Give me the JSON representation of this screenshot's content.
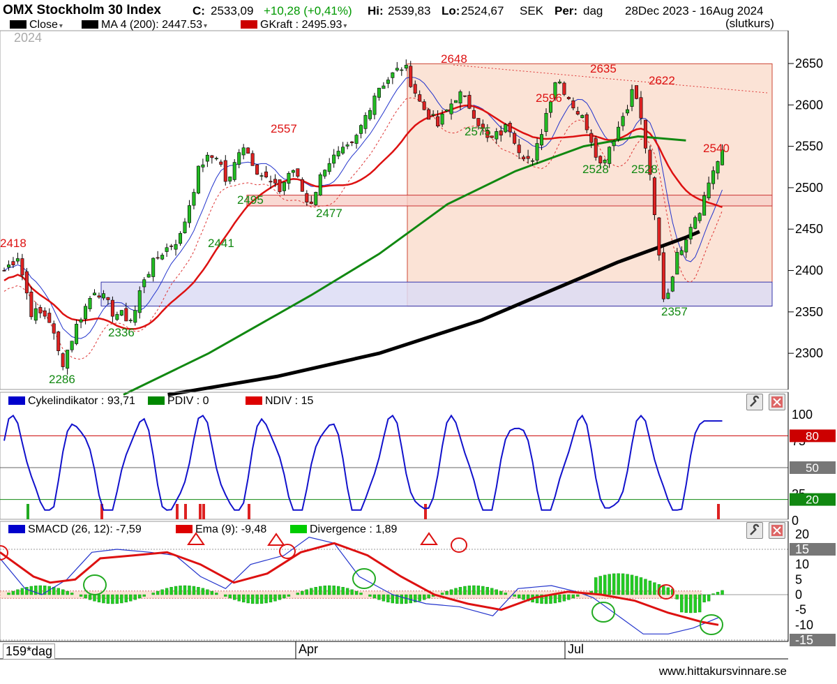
{
  "header": {
    "index_name": "OMX Stockholm 30 Index",
    "close_label": "C:",
    "close_value": "2533,09",
    "change": "+10,28 (+0,41%)",
    "hi_label": "Hi:",
    "hi_value": "2539,83",
    "lo_label": "Lo:",
    "lo_value": "2524,67",
    "currency": "SEK",
    "per_label": "Per:",
    "per_value": "dag",
    "date_range": "28Dec 2023 - 16Aug 2024",
    "price_type": "(slutkurs)",
    "year": "2024"
  },
  "legend_main": [
    {
      "label": "Close",
      "color": "#000000"
    },
    {
      "label": "MA 4 (200): 2447.53",
      "color": "#000000"
    },
    {
      "label": "GKraft : 2495.93",
      "color": "#cc0000"
    }
  ],
  "legend_cycle": [
    {
      "label": "Cykelindikator : 93,71",
      "color": "#0000cc"
    },
    {
      "label": "PDIV : 0",
      "color": "#008800"
    },
    {
      "label": "NDIV : 15",
      "color": "#dd0000"
    }
  ],
  "legend_macd": [
    {
      "label": "SMACD (26, 12): -7,59",
      "color": "#0000cc"
    },
    {
      "label": "Ema (9): -9,48",
      "color": "#dd0000"
    },
    {
      "label": "Divergence : 1,89",
      "color": "#00cc00"
    }
  ],
  "footer": {
    "bar_count": "159*dag",
    "site": "www.hittakursvinnare.se"
  },
  "chart_data": [
    {
      "type": "candlestick",
      "title": "OMX Stockholm 30 Index",
      "ylim": [
        2250,
        2670
      ],
      "yticks": [
        2300,
        2350,
        2400,
        2450,
        2500,
        2550,
        2600,
        2650
      ],
      "xticks": [
        "Apr",
        "Jul"
      ],
      "annotations": [
        {
          "text": "2418",
          "value": 2418,
          "color": "red"
        },
        {
          "text": "2286",
          "value": 2286,
          "color": "green"
        },
        {
          "text": "2336",
          "value": 2336,
          "color": "green"
        },
        {
          "text": "2441",
          "value": 2441,
          "color": "green"
        },
        {
          "text": "2557",
          "value": 2557,
          "color": "red"
        },
        {
          "text": "2495",
          "value": 2495,
          "color": "green"
        },
        {
          "text": "2477",
          "value": 2477,
          "color": "green"
        },
        {
          "text": "2648",
          "value": 2648,
          "color": "red"
        },
        {
          "text": "2575",
          "value": 2575,
          "color": "green"
        },
        {
          "text": "2596",
          "value": 2596,
          "color": "red"
        },
        {
          "text": "2528",
          "value": 2528,
          "color": "green"
        },
        {
          "text": "2635",
          "value": 2635,
          "color": "red"
        },
        {
          "text": "2528",
          "value": 2528,
          "color": "green"
        },
        {
          "text": "2622",
          "value": 2622,
          "color": "red"
        },
        {
          "text": "2540",
          "value": 2540,
          "color": "red"
        },
        {
          "text": "2357",
          "value": 2357,
          "color": "green"
        }
      ],
      "zones": [
        {
          "name": "range",
          "from": 2357,
          "to": 2648,
          "color": "#fbe3d6"
        },
        {
          "name": "support",
          "from": 2357,
          "to": 2386,
          "color": "#dcdcf5"
        },
        {
          "name": "resistance",
          "from": 2478,
          "to": 2491,
          "color": "#f7d0c8"
        }
      ]
    },
    {
      "type": "line",
      "title": "Cykelindikator",
      "ylim": [
        0,
        100
      ],
      "yticks": [
        0,
        25,
        50,
        75,
        100
      ],
      "levels": [
        80,
        50,
        20
      ],
      "last_value": 93.71
    },
    {
      "type": "line",
      "title": "SMACD",
      "ylim": [
        -17,
        20
      ],
      "yticks": [
        -15,
        -10,
        -5.0,
        0,
        5.0,
        10,
        15,
        20
      ],
      "values": {
        "smacd": -7.59,
        "ema": -9.48,
        "divergence": 1.89
      }
    }
  ]
}
